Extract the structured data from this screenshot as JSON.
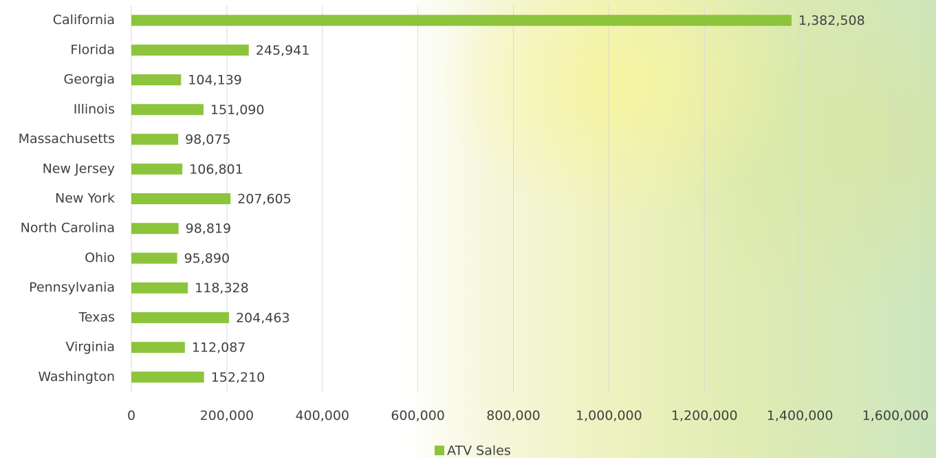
{
  "chart_data": {
    "type": "bar",
    "orientation": "horizontal",
    "categories": [
      "California",
      "Florida",
      "Georgia",
      "Illinois",
      "Massachusetts",
      "New Jersey",
      "New York",
      "North Carolina",
      "Ohio",
      "Pennsylvania",
      "Texas",
      "Virginia",
      "Washington"
    ],
    "series": [
      {
        "name": "ATV Sales",
        "color": "#8cc43c",
        "values": [
          1382508,
          245941,
          104139,
          151090,
          98075,
          106801,
          207605,
          98819,
          95890,
          118328,
          204463,
          112087,
          152210
        ],
        "value_labels": [
          "1,382,508",
          "245,941",
          "104,139",
          "151,090",
          "98,075",
          "106,801",
          "207,605",
          "98,819",
          "95,890",
          "118,328",
          "204,463",
          "112,087",
          "152,210"
        ]
      }
    ],
    "xlim": [
      0,
      1600000
    ],
    "xticks": [
      0,
      {
        "value": 200000,
        "label": "200,000"
      },
      {
        "value": 400000,
        "label": "400,000"
      },
      {
        "value": 600000,
        "label": "600,000"
      },
      {
        "value": 800000,
        "label": "800,000"
      },
      {
        "value": 1000000,
        "label": "1,000,000"
      },
      {
        "value": 1200000,
        "label": "1,200,000"
      },
      {
        "value": 1400000,
        "label": "1,400,000"
      },
      {
        "value": 1600000,
        "label": "1,600,000"
      }
    ],
    "grid": true,
    "legend": "bottom"
  }
}
